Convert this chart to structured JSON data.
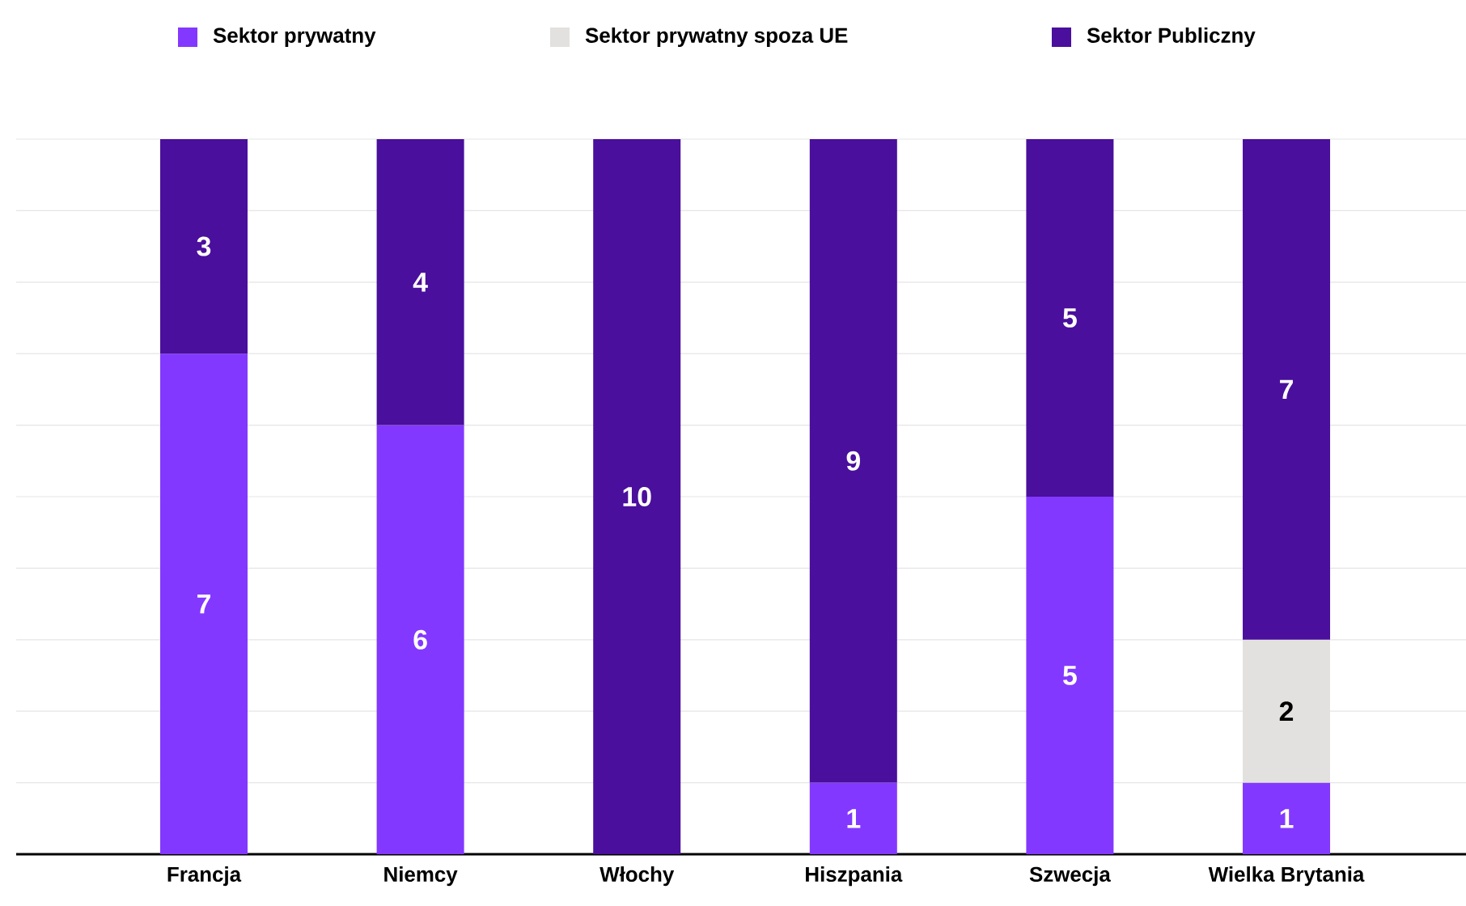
{
  "chart_data": {
    "type": "bar",
    "stacked": true,
    "categories": [
      "Francja",
      "Niemcy",
      "Włochy",
      "Hiszpania",
      "Szwecja",
      "Wielka Brytania"
    ],
    "series": [
      {
        "name": "Sektor prywatny",
        "color": "#8338ff",
        "values": [
          7,
          6,
          null,
          1,
          5,
          1
        ]
      },
      {
        "name": "Sektor prywatny spoza UE",
        "color": "#e3e1df",
        "values": [
          null,
          null,
          null,
          null,
          null,
          2
        ]
      },
      {
        "name": "Sektor Publiczny",
        "color": "#4a0f9c",
        "values": [
          3,
          4,
          10,
          9,
          5,
          7
        ]
      }
    ],
    "ylim": [
      0,
      10
    ],
    "yticks": [
      {
        "value": 0,
        "label": null
      },
      {
        "value": 1,
        "label": null
      },
      {
        "value": 2,
        "label": null
      },
      {
        "value": 3,
        "label": null
      },
      {
        "value": 4,
        "label": null
      },
      {
        "value": 5,
        "label": null
      },
      {
        "value": 6,
        "label": null
      },
      {
        "value": 7,
        "label": null
      },
      {
        "value": 8,
        "label": null
      },
      {
        "value": 9,
        "label": null
      },
      {
        "value": 10,
        "label": null
      }
    ],
    "tick_labels": "x",
    "grid": "y",
    "legend": "top",
    "data_labels": true
  }
}
